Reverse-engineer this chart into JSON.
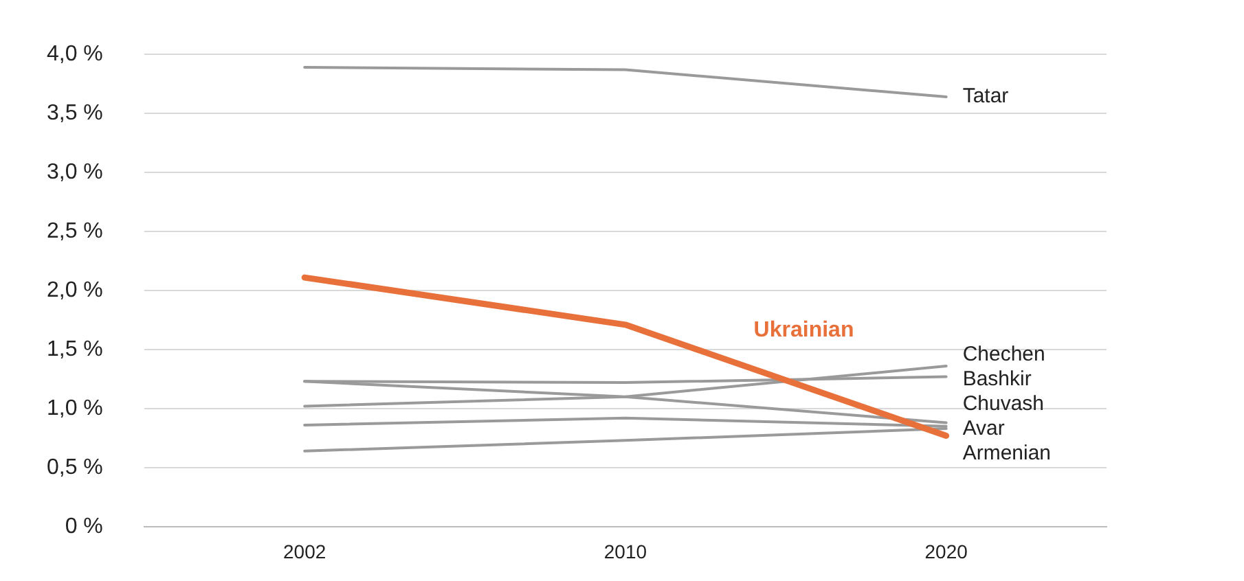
{
  "chart_data": {
    "type": "line",
    "categories": [
      "2002",
      "2010",
      "2020"
    ],
    "series": [
      {
        "name": "Tatar",
        "color": "#9a9a9a",
        "values": [
          3.89,
          3.87,
          3.64
        ]
      },
      {
        "name": "Chechen",
        "color": "#9a9a9a",
        "values": [
          1.02,
          1.1,
          1.36
        ]
      },
      {
        "name": "Bashkir",
        "color": "#9a9a9a",
        "values": [
          1.23,
          1.22,
          1.27
        ]
      },
      {
        "name": "Chuvash",
        "color": "#9a9a9a",
        "values": [
          1.23,
          1.1,
          0.88
        ]
      },
      {
        "name": "Avar",
        "color": "#9a9a9a",
        "values": [
          0.86,
          0.92,
          0.85
        ]
      },
      {
        "name": "Armenian",
        "color": "#9a9a9a",
        "values": [
          0.64,
          0.73,
          0.83
        ]
      },
      {
        "name": "Ukrainian",
        "color": "#e8703a",
        "values": [
          2.11,
          1.71,
          0.77
        ]
      }
    ],
    "ylim": [
      0,
      4
    ],
    "yticks": [
      {
        "value": 0,
        "label": "0 %"
      },
      {
        "value": 0.5,
        "label": "0,5 %"
      },
      {
        "value": 1,
        "label": "1,0 %"
      },
      {
        "value": 1.5,
        "label": "1,5 %"
      },
      {
        "value": 2,
        "label": "2,0 %"
      },
      {
        "value": 2.5,
        "label": "2,5 %"
      },
      {
        "value": 3,
        "label": "3,0 %"
      },
      {
        "value": 3.5,
        "label": "3,5 %"
      },
      {
        "value": 4,
        "label": "4,0 %"
      }
    ],
    "grid": "y",
    "legend": false,
    "marker": "none",
    "line_style": "solid"
  }
}
